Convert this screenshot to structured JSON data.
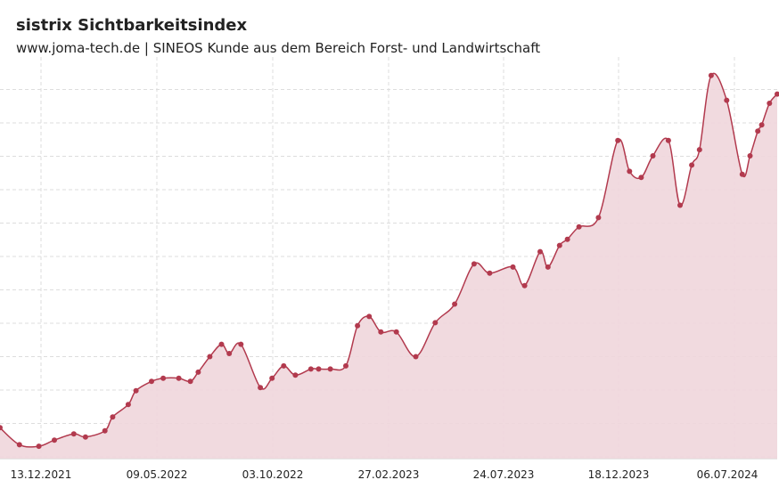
{
  "header": {
    "title": "sistrix Sichtbarkeitsindex",
    "subtitle": "www.joma-tech.de | SINEOS Kunde aus dem Bereich Forst- und Landwirtschaft"
  },
  "chart_data": {
    "type": "area",
    "title": "sistrix Sichtbarkeitsindex",
    "subtitle": "www.joma-tech.de | SINEOS Kunde aus dem Bereich Forst- und Landwirtschaft",
    "xlabel": "",
    "ylabel": "",
    "grid": true,
    "colors": {
      "line": "#b23a4e",
      "fill": "#f0d6db",
      "grid": "#dddddd"
    },
    "x_ticks": [
      "13.12.2021",
      "09.05.2022",
      "03.10.2022",
      "27.02.2023",
      "24.07.2023",
      "18.12.2023",
      "06.07.2024"
    ],
    "xlim": [
      0,
      200
    ],
    "ylim": [
      0,
      13
    ],
    "series": [
      {
        "x": [
          0,
          5,
          10,
          14,
          19,
          22,
          27,
          29,
          33,
          35,
          39,
          42,
          46,
          49,
          51,
          54,
          57,
          59,
          62,
          67,
          70,
          73,
          76,
          80,
          82,
          85,
          89,
          92,
          95,
          98,
          102,
          107,
          112,
          117,
          122,
          126,
          132,
          135,
          139,
          141,
          144,
          146,
          149,
          154,
          159,
          162,
          165,
          168,
          172,
          175,
          178,
          180,
          183,
          187,
          191,
          193,
          195,
          196,
          198,
          200
        ],
        "y": [
          1.0,
          0.45,
          0.4,
          0.6,
          0.8,
          0.7,
          0.9,
          1.35,
          1.75,
          2.2,
          2.5,
          2.6,
          2.6,
          2.5,
          2.8,
          3.3,
          3.7,
          3.4,
          3.7,
          2.3,
          2.6,
          3.0,
          2.7,
          2.9,
          2.9,
          2.9,
          3.0,
          4.3,
          4.6,
          4.1,
          4.1,
          3.3,
          4.4,
          5.0,
          6.3,
          6.0,
          6.2,
          5.6,
          6.7,
          6.2,
          6.9,
          7.1,
          7.5,
          7.8,
          10.3,
          9.3,
          9.1,
          9.8,
          10.3,
          8.2,
          9.5,
          10.0,
          12.4,
          11.6,
          9.2,
          9.8,
          10.6,
          10.8,
          11.5,
          11.8
        ]
      }
    ]
  }
}
